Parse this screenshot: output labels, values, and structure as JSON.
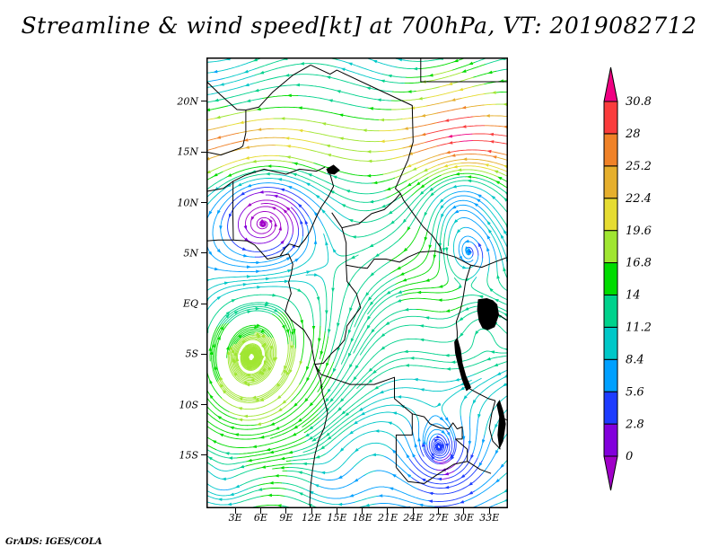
{
  "chart_data": {
    "type": "streamline",
    "title": "Streamline & wind speed[kt] at 700hPa, VT: 2019082712",
    "variable": "wind speed",
    "units": "kt",
    "level": "700hPa",
    "valid_time": "2019082712",
    "attribution": "GrADS: IGES/COLA",
    "lon_range": [
      0,
      35
    ],
    "lat_range": [
      -20,
      24
    ],
    "lon_tick_labels": [
      "3E",
      "6E",
      "9E",
      "12E",
      "15E",
      "18E",
      "21E",
      "24E",
      "27E",
      "30E",
      "33E"
    ],
    "lon_tick_values": [
      3,
      6,
      9,
      12,
      15,
      18,
      21,
      24,
      27,
      30,
      33
    ],
    "lat_tick_labels": [
      "20N",
      "15N",
      "10N",
      "5N",
      "EQ",
      "5S",
      "10S",
      "15S"
    ],
    "lat_tick_values": [
      20,
      15,
      10,
      5,
      0,
      -5,
      -10,
      -15
    ],
    "colorbar": {
      "orientation": "vertical",
      "units": "kt",
      "levels": [
        0,
        2.8,
        5.6,
        8.4,
        11.2,
        14,
        16.8,
        19.6,
        22.4,
        25.2,
        28,
        30.8
      ],
      "labels": [
        "0",
        "2.8",
        "5.6",
        "8.4",
        "11.2",
        "14",
        "16.8",
        "19.6",
        "22.4",
        "25.2",
        "28",
        "30.8"
      ],
      "colors": [
        "#A000C8",
        "#8200DC",
        "#1E3CFF",
        "#00A0FF",
        "#00C8C8",
        "#00D28C",
        "#00DC00",
        "#A0E632",
        "#E6DC32",
        "#E6AF2D",
        "#F08228",
        "#FA3C3C",
        "#F00082"
      ]
    },
    "notable_features": [
      {
        "type": "easterly-jet-band",
        "lat": "14N-17N",
        "speed_kt": "22-31"
      },
      {
        "type": "cyclonic-eddy",
        "lon": 7,
        "lat": 9
      },
      {
        "type": "cyclonic-eddy",
        "lon": 30,
        "lat": 10.5
      },
      {
        "type": "cyclonic-eddy",
        "lon": 31.5,
        "lat": 5
      },
      {
        "type": "gyre",
        "lon": 5,
        "lat": -8
      },
      {
        "type": "eddy",
        "lon": 28,
        "lat": -16
      }
    ]
  }
}
